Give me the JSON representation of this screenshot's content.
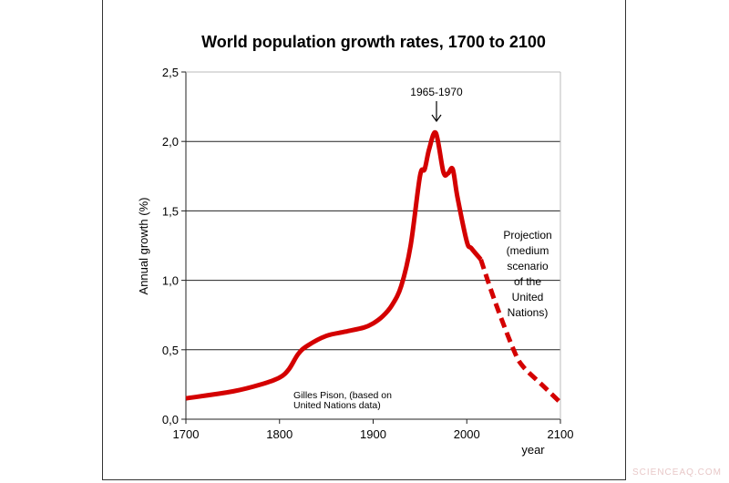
{
  "chart_data": {
    "type": "line",
    "title": "World population growth rates, 1700 to 2100",
    "xlabel": "year",
    "ylabel": "Annual growth (%)",
    "xlim": [
      1700,
      2100
    ],
    "ylim": [
      0,
      2.5
    ],
    "x_ticks": [
      "1700",
      "1800",
      "1900",
      "2000",
      "2100"
    ],
    "y_ticks": [
      "0,0",
      "0,5",
      "1,0",
      "1,5",
      "2,0",
      "2,5"
    ],
    "grid": "horizontal",
    "line_color": "#d40000",
    "series": [
      {
        "style": "solid",
        "x": [
          1700,
          1750,
          1780,
          1800,
          1810,
          1820,
          1830,
          1850,
          1870,
          1890,
          1900,
          1910,
          1920,
          1930,
          1940,
          1950,
          1955,
          1960,
          1967,
          1975,
          1980,
          1985,
          1990,
          2000,
          2005,
          2015
        ],
        "y": [
          0.15,
          0.2,
          0.25,
          0.3,
          0.36,
          0.47,
          0.53,
          0.6,
          0.63,
          0.66,
          0.69,
          0.74,
          0.82,
          0.96,
          1.25,
          1.75,
          1.8,
          1.95,
          2.06,
          1.78,
          1.77,
          1.8,
          1.6,
          1.28,
          1.23,
          1.15
        ]
      },
      {
        "style": "dashed",
        "x": [
          2015,
          2030,
          2050,
          2060,
          2080,
          2100
        ],
        "y": [
          1.15,
          0.85,
          0.5,
          0.38,
          0.25,
          0.12
        ]
      }
    ],
    "annotations": {
      "peak": "1965-1970",
      "projection": [
        "Projection",
        "(medium",
        "scenario",
        "of the",
        "United",
        "Nations)"
      ],
      "source": [
        "Gilles Pison, (based on",
        "United Nations data)"
      ]
    }
  },
  "watermark": "SCIENCEAQ.COM"
}
